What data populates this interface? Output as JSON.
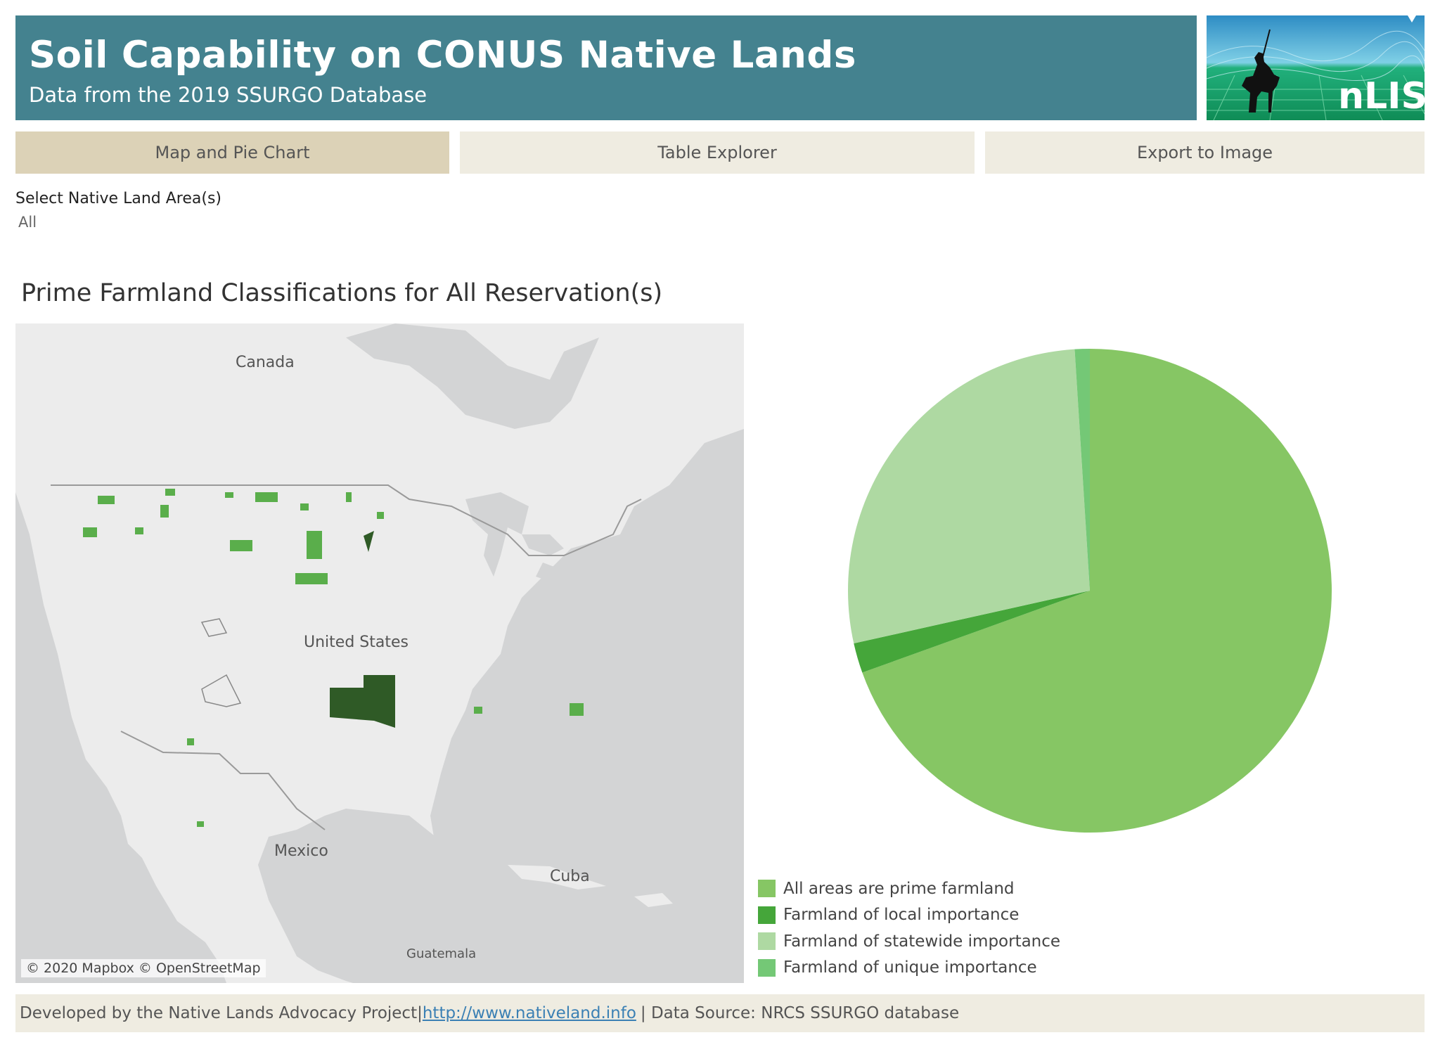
{
  "header": {
    "title": "Soil Capability on CONUS Native Lands",
    "subtitle": "Data from the 2019 SSURGO Database",
    "logo_text": "nLIS"
  },
  "tabs": [
    {
      "label": "Map and Pie Chart",
      "active": true
    },
    {
      "label": "Table Explorer",
      "active": false
    },
    {
      "label": "Export to Image",
      "active": false
    }
  ],
  "filter": {
    "label": "Select Native Land Area(s)",
    "value": "All"
  },
  "section_title": "Prime Farmland Classifications for All Reservation(s)",
  "map": {
    "labels": {
      "canada": "Canada",
      "united_states": "United States",
      "mexico": "Mexico",
      "cuba": "Cuba",
      "guatemala": "Guatemala"
    },
    "attribution": "© 2020 Mapbox © OpenStreetMap",
    "colors": {
      "ocean": "#d3d4d5",
      "land": "#ececec",
      "border": "#9a9a9a"
    }
  },
  "chart_data": {
    "type": "pie",
    "categories": [
      "All areas are prime farmland",
      "Farmland of local importance",
      "Farmland of statewide importance",
      "Farmland of unique importance"
    ],
    "values": [
      69.5,
      2.0,
      27.5,
      1.0
    ],
    "unit": "share of area (%)",
    "colors": [
      "#86c664",
      "#45a63a",
      "#aed9a2",
      "#74c876"
    ],
    "legend_position": "bottom-left"
  },
  "footer": {
    "prefix": "Developed by the Native Lands Advocacy Project|",
    "link": "http://www.nativeland.info",
    "suffix": "| Data Source: NRCS SSURGO database"
  }
}
